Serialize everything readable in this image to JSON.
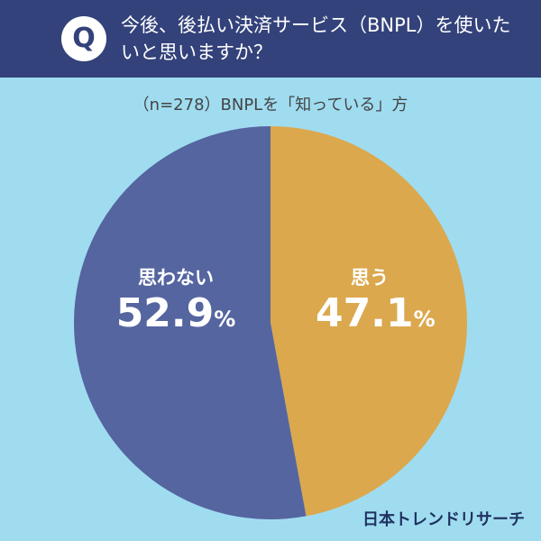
{
  "header": {
    "badge": "Q",
    "title": "今後、後払い決済サービス（BNPL）を使いたいと思いますか？"
  },
  "subtitle": "（n=278）BNPLを「知っている」方",
  "logo": "日本トレンドリサーチ",
  "chart_data": {
    "type": "pie",
    "title": "今後、後払い決済サービス（BNPL）を使いたいと思いますか？",
    "subtitle": "（n=278）BNPLを「知っている」方",
    "slices": [
      {
        "label": "思う",
        "value": 47.1,
        "value_text": "47.1",
        "unit": "%",
        "color": "#dba84e"
      },
      {
        "label": "思わない",
        "value": 52.9,
        "value_text": "52.9",
        "unit": "%",
        "color": "#5565a0"
      }
    ],
    "start": "top",
    "direction": "clockwise"
  }
}
